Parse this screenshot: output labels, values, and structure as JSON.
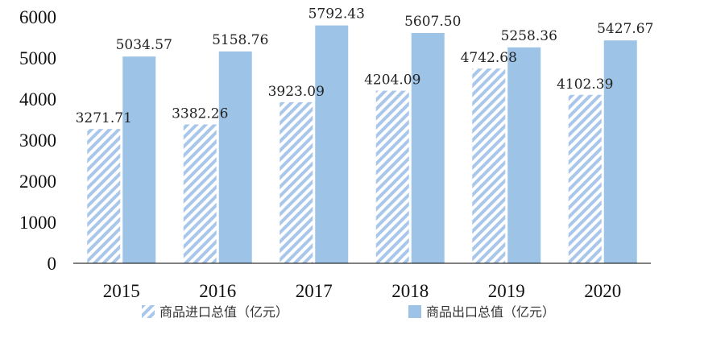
{
  "chart_data": {
    "type": "bar",
    "categories": [
      "2015",
      "2016",
      "2017",
      "2018",
      "2019",
      "2020"
    ],
    "series": [
      {
        "name": "商品进口总值（亿元）",
        "values": [
          3271.71,
          3382.26,
          3923.09,
          4204.09,
          4742.68,
          4102.39
        ],
        "labels": [
          "3271.71",
          "3382.26",
          "3923.09",
          "4204.09",
          "4742.68",
          "4102.39"
        ]
      },
      {
        "name": "商品出口总值（亿元）",
        "values": [
          5034.57,
          5158.76,
          5792.43,
          5607.5,
          5258.36,
          5427.67
        ],
        "labels": [
          "5034.57",
          "5158.76",
          "5792.43",
          "5607.50",
          "5258.36",
          "5427.67"
        ]
      }
    ],
    "yticks": [
      "0",
      "1000",
      "2000",
      "3000",
      "4000",
      "5000",
      "6000"
    ],
    "ylim": [
      0,
      6000
    ],
    "grid": false,
    "legend_position": "bottom",
    "colors": {
      "import_stripe": "#a9c7ea",
      "export_fill": "#9dc3e6",
      "axis": "#000000"
    }
  }
}
